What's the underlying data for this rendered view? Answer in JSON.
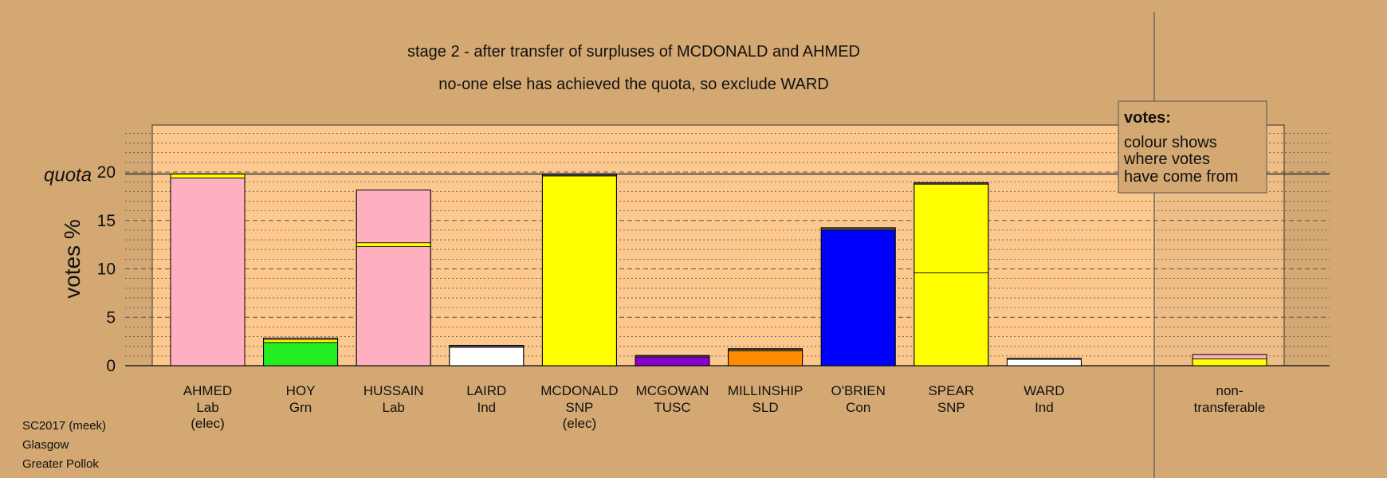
{
  "chart_data": {
    "type": "bar",
    "stacked": true,
    "title": "stage 2 - after transfer of surpluses of MCDONALD and AHMED",
    "subtitle": "no-one else has achieved the quota, so exclude WARD",
    "ylabel": "votes %",
    "ylim": [
      0,
      25
    ],
    "yticks": [
      0,
      5,
      10,
      15,
      20
    ],
    "quota_label": "quota",
    "quota_value": 19.8,
    "grid": true,
    "legend": {
      "title": "votes:",
      "lines": [
        "colour shows",
        "where votes",
        "have come from"
      ],
      "position": "top-right"
    },
    "colors": {
      "Lab": "#ffb0c0",
      "SNP": "#ffff00",
      "Grn": "#22ee22",
      "Ind": "#ffffff",
      "TUSC": "#8800cc",
      "SLD": "#ff8c00",
      "Con": "#0000ff",
      "dark": "#555555"
    },
    "candidates": [
      {
        "name": "AHMED",
        "party": "Lab",
        "note": "(elec)",
        "segments": [
          {
            "src": "Lab",
            "value": 19.4
          },
          {
            "src": "SNP",
            "value": 0.4
          }
        ]
      },
      {
        "name": "HOY",
        "party": "Grn",
        "note": "",
        "segments": [
          {
            "src": "Grn",
            "value": 2.4
          },
          {
            "src": "SNP",
            "value": 0.3
          },
          {
            "src": "Lab",
            "value": 0.15
          }
        ]
      },
      {
        "name": "HUSSAIN",
        "party": "Lab",
        "note": "",
        "segments": [
          {
            "src": "Lab",
            "value": 12.3
          },
          {
            "src": "SNP",
            "value": 0.4
          },
          {
            "src": "Lab",
            "value": 5.45
          }
        ]
      },
      {
        "name": "LAIRD",
        "party": "Ind",
        "note": "",
        "segments": [
          {
            "src": "Ind",
            "value": 1.9
          },
          {
            "src": "dark",
            "value": 0.2
          }
        ]
      },
      {
        "name": "MCDONALD",
        "party": "SNP",
        "note": "(elec)",
        "segments": [
          {
            "src": "SNP",
            "value": 19.6
          },
          {
            "src": "dark",
            "value": 0.2
          }
        ]
      },
      {
        "name": "MCGOWAN",
        "party": "TUSC",
        "note": "",
        "segments": [
          {
            "src": "TUSC",
            "value": 0.9
          },
          {
            "src": "dark",
            "value": 0.15
          }
        ]
      },
      {
        "name": "MILLINSHIP",
        "party": "SLD",
        "note": "",
        "segments": [
          {
            "src": "SLD",
            "value": 1.55
          },
          {
            "src": "dark",
            "value": 0.2
          }
        ]
      },
      {
        "name": "O'BRIEN",
        "party": "Con",
        "note": "",
        "segments": [
          {
            "src": "Con",
            "value": 14.0
          },
          {
            "src": "dark",
            "value": 0.25
          }
        ]
      },
      {
        "name": "SPEAR",
        "party": "SNP",
        "note": "",
        "segments": [
          {
            "src": "SNP",
            "value": 9.6
          },
          {
            "src": "SNP",
            "value": 9.15
          },
          {
            "src": "dark",
            "value": 0.15
          }
        ]
      },
      {
        "name": "WARD",
        "party": "Ind",
        "note": "",
        "segments": [
          {
            "src": "Ind",
            "value": 0.65
          },
          {
            "src": "dark",
            "value": 0.1
          }
        ]
      }
    ],
    "nontransferable": {
      "label_line1": "non-",
      "label_line2": "transferable",
      "segments": [
        {
          "src": "SNP",
          "value": 0.7
        },
        {
          "src": "Lab",
          "value": 0.45
        }
      ]
    }
  },
  "footer": {
    "line1": "SC2017 (meek)",
    "line2": "Glasgow",
    "line3": "Greater Pollok"
  }
}
